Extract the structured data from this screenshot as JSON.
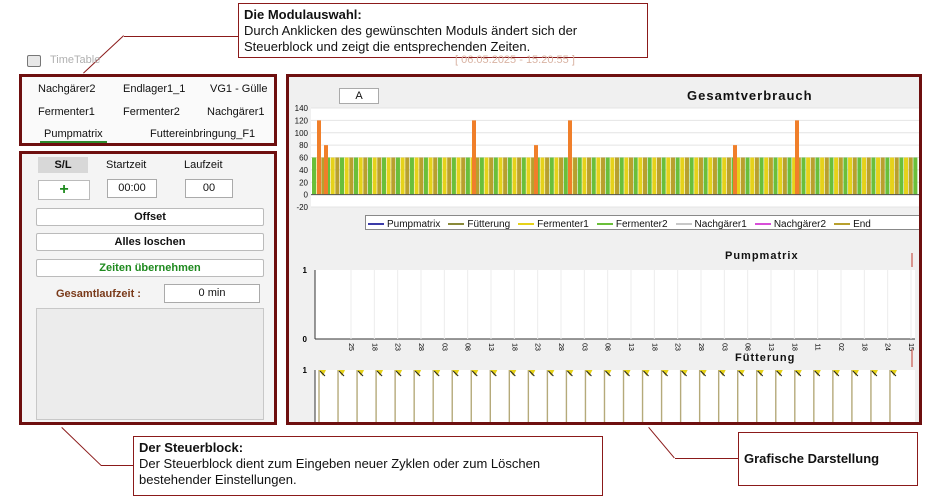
{
  "callouts": {
    "modul": {
      "title": "Die Modulauswahl:",
      "text": "Durch Anklicken des gewünschten Moduls ändert sich der Steuerblock und zeigt die entsprechenden Zeiten."
    },
    "steuer": {
      "title": "Der Steuerblock:",
      "text": "Der Steuerblock dient zum Eingeben neuer Zyklen oder zum Löschen bestehender Einstellungen."
    },
    "grafik": {
      "title": "Grafische Darstellung"
    }
  },
  "window": {
    "title": "TimeTable",
    "date_range": "[ 06.05.2025 - 15.20.55 ]"
  },
  "modules": {
    "row1": [
      "Nachgärer2",
      "Endlager1_1",
      "VG1 - Gülle"
    ],
    "row2": [
      "Fermenter1",
      "Fermenter2",
      "Nachgärer1"
    ],
    "row3": [
      "Pumpmatrix",
      "Futtereinbringung_F1"
    ],
    "active": "Pumpmatrix"
  },
  "control": {
    "sl_label": "S/L",
    "start_label": "Startzeit",
    "duration_label": "Laufzeit",
    "add_symbol": "+",
    "start_value": "00:00",
    "duration_value": "00",
    "offset_label": "Offset",
    "clear_label": "Alles loschen",
    "apply_label": "Zeiten übernehmen",
    "total_label": "Gesamtlaufzeit :",
    "total_value": "0 min"
  },
  "graph": {
    "tab_label": "A",
    "colors": {
      "green": "#6abf3a",
      "orange": "#f07f2a",
      "yellow": "#e6d21a",
      "olive": "#b8a02e",
      "accent": "#6e0f0f"
    },
    "legend": [
      {
        "name": "Pumpmatrix",
        "color": "#3b3ba8"
      },
      {
        "name": "Fütterung",
        "color": "#8a8a3a"
      },
      {
        "name": "Fermenter1",
        "color": "#e6d21a"
      },
      {
        "name": "Fermenter2",
        "color": "#6abf3a"
      },
      {
        "name": "Nachgärer1",
        "color": "#c8c8c8"
      },
      {
        "name": "Nachgärer2",
        "color": "#d84fd8"
      },
      {
        "name": "End",
        "color": "#b8a02e"
      }
    ]
  },
  "chart_data": [
    {
      "type": "bar",
      "title": "Gesamtverbrauch",
      "ylim": [
        -20,
        140
      ],
      "yticks": [
        "140",
        "120",
        "100",
        "80",
        "60",
        "40",
        "20",
        "0",
        "-20"
      ],
      "series": [
        {
          "name": "Fermenter2",
          "value": 60,
          "bars": 130
        },
        {
          "name": "Fütterung",
          "value": 120,
          "positions": [
            6,
            161,
            257,
            484
          ],
          "note": "orange peaks"
        },
        {
          "name": "Fütterung",
          "value": 80,
          "positions": [
            13,
            223,
            422
          ]
        }
      ]
    },
    {
      "type": "line",
      "title": "Pumpmatrix",
      "ylim": [
        0,
        1
      ],
      "yticks": [
        "1",
        "0"
      ],
      "xticks": [
        "25",
        "18",
        "23",
        "28",
        "03",
        "08",
        "13",
        "18",
        "23",
        "28",
        "03",
        "08",
        "13",
        "18",
        "23",
        "28",
        "03",
        "08",
        "13",
        "18",
        "11",
        "02",
        "18",
        "24",
        "15"
      ]
    },
    {
      "type": "bar",
      "title": "Fütterung",
      "ylim": [
        0,
        1
      ],
      "yticks": [
        "1"
      ],
      "pulses": 31
    }
  ]
}
